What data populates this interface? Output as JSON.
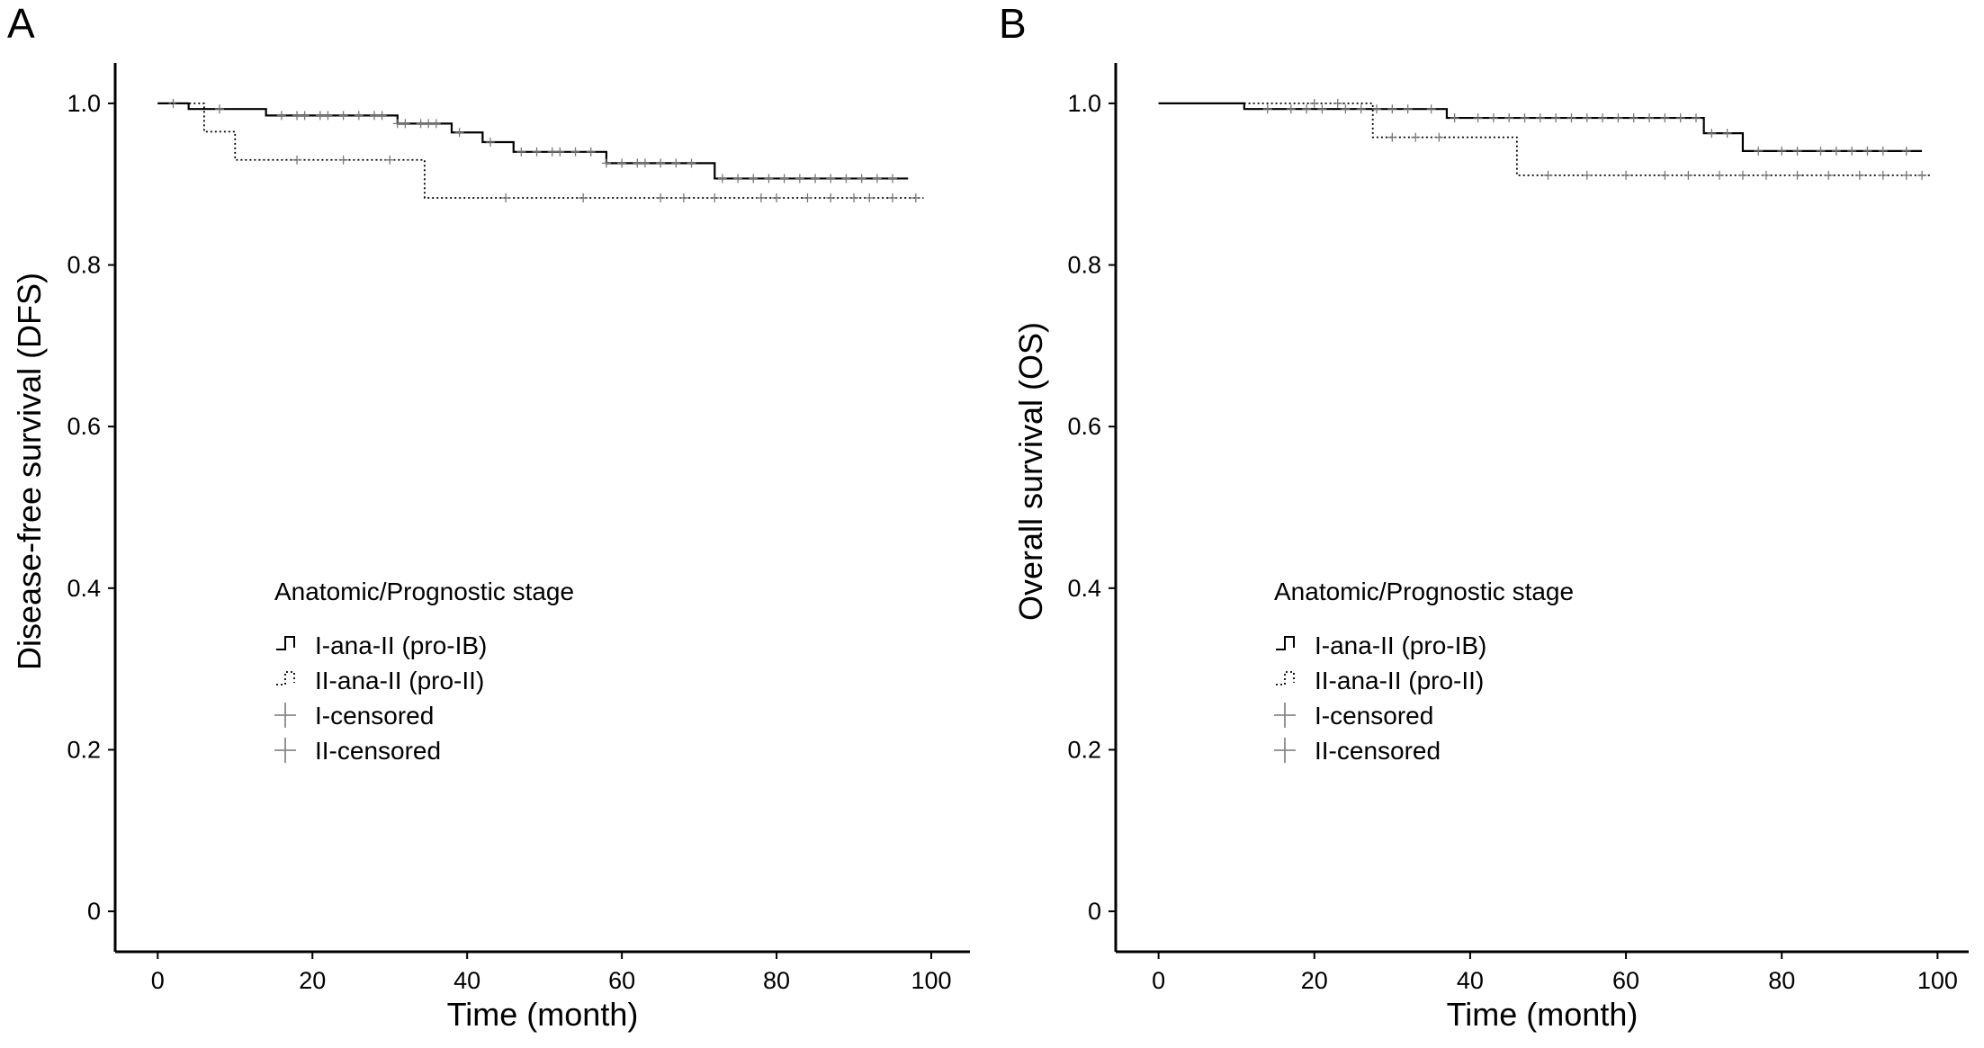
{
  "chart_data": [
    {
      "panel": "A",
      "type": "line",
      "subtype": "kaplan-meier",
      "xlabel": "Time (month)",
      "ylabel": "Disease-free survival (DFS)",
      "xlim": [
        -5.5,
        105
      ],
      "ylim": [
        -0.05,
        1.05
      ],
      "xticks": [
        "0",
        "20",
        "40",
        "60",
        "80",
        "100"
      ],
      "yticks": [
        "0",
        "0.2",
        "0.4",
        "0.6",
        "0.8",
        "1.0"
      ],
      "legend": {
        "title": "Anatomic/Prognostic stage",
        "placement": "center-left",
        "entries": [
          "I-ana-II (pro-IB)",
          "II-ana-II (pro-II)",
          "I-censored",
          "II-censored"
        ]
      },
      "series": [
        {
          "name": "I-ana-II (pro-IB)",
          "line_style": "solid",
          "color": "#000000",
          "steps": [
            [
              0,
              1.0
            ],
            [
              4,
              0.993
            ],
            [
              14,
              0.985
            ],
            [
              31,
              0.975
            ],
            [
              38,
              0.964
            ],
            [
              42,
              0.952
            ],
            [
              46,
              0.94
            ],
            [
              58,
              0.926
            ],
            [
              72,
              0.907
            ],
            [
              97,
              0.907
            ]
          ],
          "censored": [
            2,
            8,
            16,
            18,
            19,
            21,
            22,
            24,
            26,
            28,
            29,
            31,
            32,
            34,
            35,
            36,
            39,
            43,
            47,
            49,
            51,
            52,
            54,
            56,
            58,
            60,
            62,
            63,
            65,
            67,
            69,
            73,
            75,
            77,
            79,
            81,
            83,
            85,
            87,
            89,
            91,
            93,
            95
          ]
        },
        {
          "name": "II-ana-II (pro-II)",
          "line_style": "dotted",
          "color": "#000000",
          "steps": [
            [
              0,
              1.0
            ],
            [
              6,
              0.965
            ],
            [
              10,
              0.93
            ],
            [
              34.5,
              0.883
            ],
            [
              99,
              0.883
            ]
          ],
          "censored": [
            18,
            24,
            30,
            45,
            55,
            65,
            68,
            72,
            78,
            80,
            84,
            87,
            90,
            92,
            95,
            98
          ]
        }
      ]
    },
    {
      "panel": "B",
      "type": "line",
      "subtype": "kaplan-meier",
      "xlabel": "Time (month)",
      "ylabel": "Overall survival (OS)",
      "xlim": [
        -5.5,
        104
      ],
      "ylim": [
        -0.05,
        1.05
      ],
      "xticks": [
        "0",
        "20",
        "40",
        "60",
        "80",
        "100"
      ],
      "yticks": [
        "0",
        "0.2",
        "0.4",
        "0.6",
        "0.8",
        "1.0"
      ],
      "legend": {
        "title": "Anatomic/Prognostic stage",
        "placement": "center-left",
        "entries": [
          "I-ana-II (pro-IB)",
          "II-ana-II (pro-II)",
          "I-censored",
          "II-censored"
        ]
      },
      "series": [
        {
          "name": "I-ana-II (pro-IB)",
          "line_style": "solid",
          "color": "#000000",
          "steps": [
            [
              0,
              1.0
            ],
            [
              11,
              0.993
            ],
            [
              37,
              0.982
            ],
            [
              70,
              0.963
            ],
            [
              75,
              0.941
            ],
            [
              98,
              0.941
            ]
          ],
          "censored": [
            14,
            17,
            19,
            21,
            24,
            26,
            28,
            30,
            32,
            35,
            38,
            41,
            43,
            45,
            47,
            49,
            51,
            53,
            55,
            57,
            59,
            61,
            63,
            65,
            67,
            69,
            71,
            73,
            77,
            80,
            82,
            85,
            87,
            89,
            91,
            93,
            96
          ]
        },
        {
          "name": "II-ana-II (pro-II)",
          "line_style": "dotted",
          "color": "#000000",
          "steps": [
            [
              0,
              1.0
            ],
            [
              27.5,
              0.958
            ],
            [
              46,
              0.911
            ],
            [
              99,
              0.911
            ]
          ],
          "censored": [
            20,
            23,
            30,
            33,
            36,
            50,
            55,
            60,
            65,
            68,
            72,
            75,
            78,
            82,
            86,
            90,
            93,
            96,
            98
          ]
        }
      ]
    }
  ]
}
